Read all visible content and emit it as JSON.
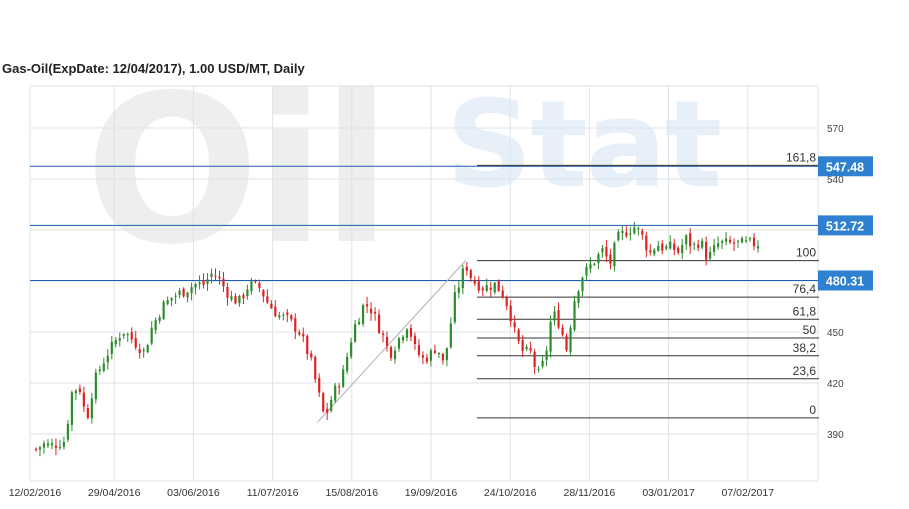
{
  "title": "Gas-Oil(ExpDate: 12/04/2017), 1.00 USD/MT, Daily",
  "watermark": {
    "word1": "Oil",
    "word2": "Stat"
  },
  "colors": {
    "up": "#2e8b2e",
    "down": "#dd2222",
    "level_line": "#1a5fb4",
    "level_tag": "#2f80d1",
    "fib_line": "#333333",
    "grid": "#dde3ea"
  },
  "chart_data": {
    "type": "candlestick",
    "x_ticks": [
      "12/02/2016",
      "29/04/2016",
      "03/06/2016",
      "11/07/2016",
      "15/08/2016",
      "19/09/2016",
      "24/10/2016",
      "28/11/2016",
      "03/01/2017",
      "07/02/2017"
    ],
    "y_ticks": [
      390,
      420,
      450,
      540,
      570
    ],
    "y_range": [
      368,
      590
    ],
    "grid": true,
    "horizontal_levels": [
      547.48,
      512.72,
      480.31
    ],
    "level_tags": [
      "547.48",
      "512.72",
      "480.31"
    ],
    "fibonacci": [
      {
        "label": "161,8",
        "value": 548.0
      },
      {
        "label": "100",
        "value": 492.0
      },
      {
        "label": "76,4",
        "value": 470.5
      },
      {
        "label": "61,8",
        "value": 457.5
      },
      {
        "label": "50",
        "value": 446.5
      },
      {
        "label": "38,2",
        "value": 436.0
      },
      {
        "label": "23,6",
        "value": 422.5
      },
      {
        "label": "0",
        "value": 399.5
      }
    ],
    "trendline": [
      {
        "x": 0.39,
        "y": 397
      },
      {
        "x": 0.595,
        "y": 492
      }
    ],
    "close_path": [
      [
        0.0,
        381
      ],
      [
        0.01,
        384
      ],
      [
        0.02,
        383
      ],
      [
        0.04,
        386
      ],
      [
        0.05,
        415
      ],
      [
        0.06,
        418
      ],
      [
        0.07,
        398
      ],
      [
        0.08,
        420
      ],
      [
        0.09,
        430
      ],
      [
        0.1,
        438
      ],
      [
        0.12,
        451
      ],
      [
        0.135,
        445
      ],
      [
        0.15,
        438
      ],
      [
        0.16,
        452
      ],
      [
        0.175,
        465
      ],
      [
        0.19,
        471
      ],
      [
        0.205,
        474
      ],
      [
        0.22,
        478
      ],
      [
        0.232,
        478
      ],
      [
        0.245,
        485
      ],
      [
        0.255,
        480
      ],
      [
        0.27,
        470
      ],
      [
        0.282,
        468
      ],
      [
        0.295,
        478
      ],
      [
        0.31,
        476
      ],
      [
        0.32,
        468
      ],
      [
        0.335,
        460
      ],
      [
        0.35,
        457
      ],
      [
        0.365,
        450
      ],
      [
        0.38,
        434
      ],
      [
        0.39,
        416
      ],
      [
        0.4,
        399
      ],
      [
        0.41,
        412
      ],
      [
        0.425,
        425
      ],
      [
        0.44,
        452
      ],
      [
        0.455,
        467
      ],
      [
        0.465,
        463
      ],
      [
        0.48,
        448
      ],
      [
        0.49,
        437
      ],
      [
        0.5,
        444
      ],
      [
        0.515,
        455
      ],
      [
        0.525,
        440
      ],
      [
        0.535,
        434
      ],
      [
        0.545,
        436
      ],
      [
        0.555,
        442
      ],
      [
        0.565,
        430
      ],
      [
        0.58,
        470
      ],
      [
        0.595,
        490
      ],
      [
        0.605,
        480
      ],
      [
        0.62,
        476
      ],
      [
        0.635,
        478
      ],
      [
        0.645,
        474
      ],
      [
        0.655,
        464
      ],
      [
        0.665,
        446
      ],
      [
        0.675,
        438
      ],
      [
        0.685,
        438
      ],
      [
        0.695,
        424
      ],
      [
        0.705,
        434
      ],
      [
        0.715,
        462
      ],
      [
        0.725,
        455
      ],
      [
        0.735,
        440
      ],
      [
        0.745,
        468
      ],
      [
        0.755,
        482
      ],
      [
        0.77,
        490
      ],
      [
        0.785,
        498
      ],
      [
        0.795,
        490
      ],
      [
        0.805,
        505
      ],
      [
        0.82,
        510
      ],
      [
        0.83,
        512
      ],
      [
        0.84,
        506
      ],
      [
        0.85,
        496
      ],
      [
        0.86,
        502
      ],
      [
        0.87,
        499
      ],
      [
        0.88,
        500
      ],
      [
        0.89,
        497
      ],
      [
        0.9,
        505
      ],
      [
        0.91,
        500
      ],
      [
        0.92,
        504
      ],
      [
        0.93,
        493
      ],
      [
        0.945,
        502
      ]
    ]
  }
}
